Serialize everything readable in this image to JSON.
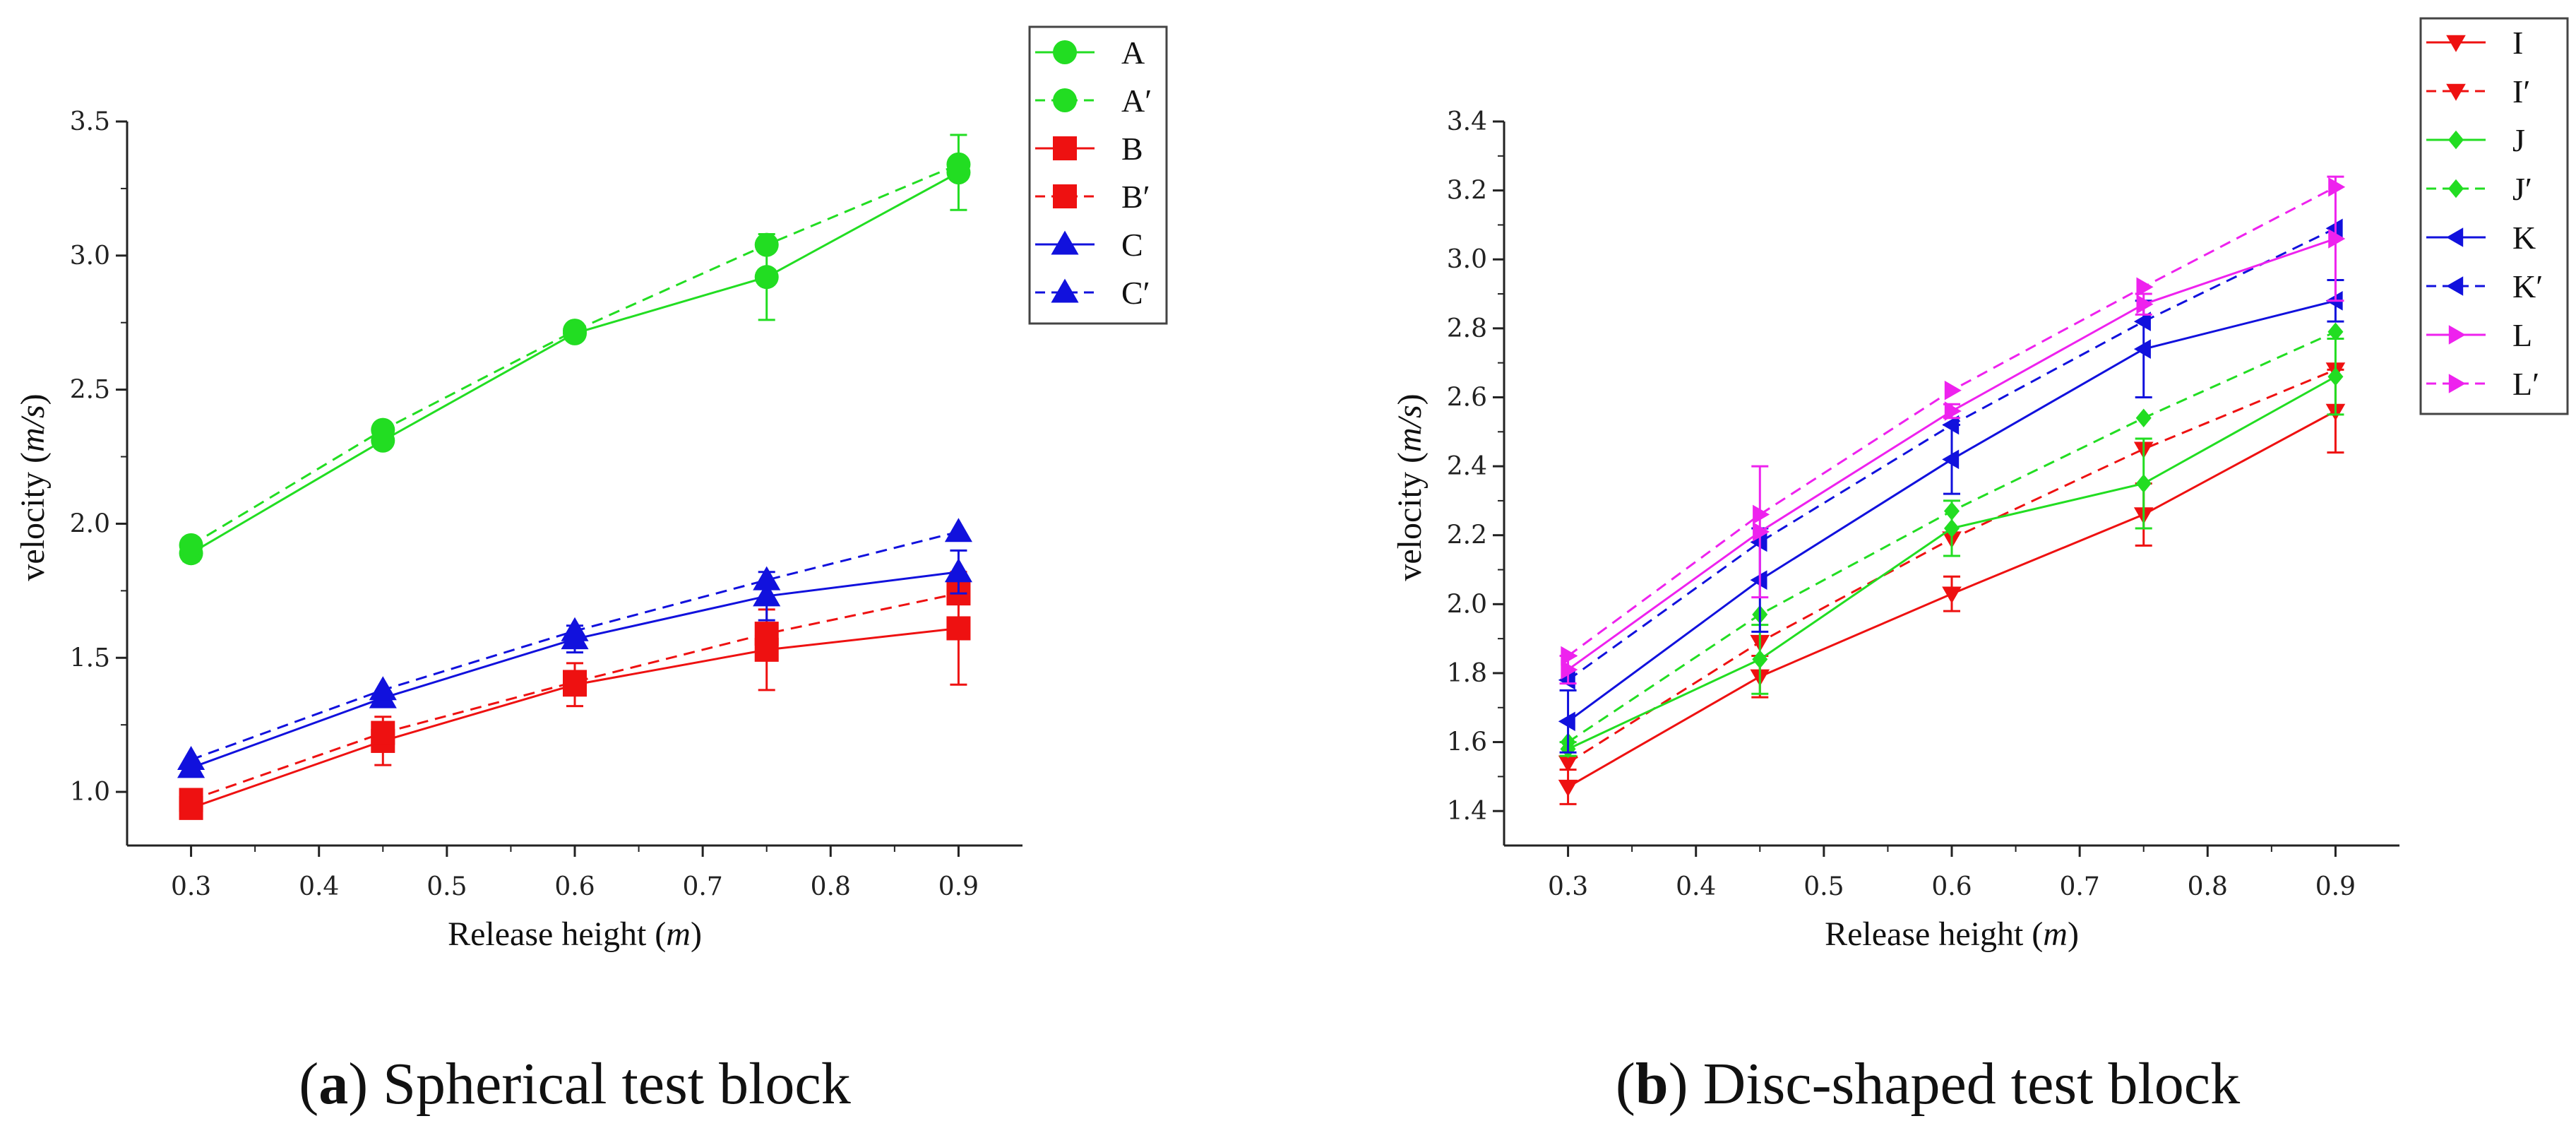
{
  "charts": [
    {
      "title": "Spherical test block",
      "caption_letter": "a",
      "xlabel": "Release height",
      "xunit": "m",
      "ylabel": "velocity",
      "yunit": "m/s",
      "x_ticks": [
        "0.3",
        "0.4",
        "0.5",
        "0.6",
        "0.7",
        "0.8",
        "0.9"
      ],
      "y_ticks": [
        "1.0",
        "1.5",
        "2.0",
        "2.5",
        "3.0",
        "3.5"
      ],
      "legend": [
        "A",
        "A′",
        "B",
        "B′",
        "C",
        "C′"
      ]
    },
    {
      "title": "Disc-shaped test block",
      "caption_letter": "b",
      "xlabel": "Release height",
      "xunit": "m",
      "ylabel": "velocity",
      "yunit": "m/s",
      "x_ticks": [
        "0.3",
        "0.4",
        "0.5",
        "0.6",
        "0.7",
        "0.8",
        "0.9"
      ],
      "y_ticks": [
        "1.4",
        "1.6",
        "1.8",
        "2.0",
        "2.2",
        "2.4",
        "2.6",
        "2.8",
        "3.0",
        "3.2",
        "3.4"
      ],
      "legend": [
        "I",
        "I′",
        "J",
        "J′",
        "K",
        "K′",
        "L",
        "L′"
      ]
    }
  ],
  "chart_data": [
    {
      "type": "line",
      "title": "Spherical test block",
      "xlabel": "Release height (m)",
      "ylabel": "velocity (m/s)",
      "x": [
        0.3,
        0.45,
        0.6,
        0.75,
        0.9
      ],
      "xlim": [
        0.25,
        0.95
      ],
      "ylim": [
        0.8,
        3.5
      ],
      "legend_position": "top-right outside",
      "series": [
        {
          "name": "A",
          "color": "#22dd22",
          "dash": false,
          "marker": "circle",
          "values": [
            1.89,
            2.31,
            2.71,
            2.92,
            3.31
          ],
          "errors": [
            0.03,
            0.02,
            0.02,
            0.16,
            0.14
          ]
        },
        {
          "name": "A′",
          "color": "#22dd22",
          "dash": true,
          "marker": "circle",
          "values": [
            1.92,
            2.35,
            2.72,
            3.04,
            3.34
          ],
          "errors": [
            0,
            0,
            0,
            0,
            0
          ]
        },
        {
          "name": "B",
          "color": "#ee1111",
          "dash": false,
          "marker": "square",
          "values": [
            0.94,
            1.19,
            1.4,
            1.53,
            1.61
          ],
          "errors": [
            0.02,
            0.09,
            0.08,
            0.15,
            0.21
          ]
        },
        {
          "name": "B′",
          "color": "#ee1111",
          "dash": true,
          "marker": "square",
          "values": [
            0.97,
            1.22,
            1.41,
            1.59,
            1.74
          ],
          "errors": [
            0,
            0,
            0,
            0,
            0
          ]
        },
        {
          "name": "C",
          "color": "#1111dd",
          "dash": false,
          "marker": "triangle-up",
          "values": [
            1.09,
            1.35,
            1.57,
            1.73,
            1.82
          ],
          "errors": [
            0.01,
            0.02,
            0.05,
            0.09,
            0.08
          ]
        },
        {
          "name": "C′",
          "color": "#1111dd",
          "dash": true,
          "marker": "triangle-up",
          "values": [
            1.12,
            1.38,
            1.6,
            1.79,
            1.97
          ],
          "errors": [
            0,
            0,
            0,
            0,
            0
          ]
        }
      ]
    },
    {
      "type": "line",
      "title": "Disc-shaped test block",
      "xlabel": "Release height (m)",
      "ylabel": "velocity (m/s)",
      "x": [
        0.3,
        0.45,
        0.6,
        0.75,
        0.9
      ],
      "xlim": [
        0.25,
        0.95
      ],
      "ylim": [
        1.3,
        3.4
      ],
      "legend_position": "top-right outside",
      "series": [
        {
          "name": "I",
          "color": "#ee1111",
          "dash": false,
          "marker": "triangle-down",
          "values": [
            1.47,
            1.79,
            2.03,
            2.26,
            2.56
          ],
          "errors": [
            0.05,
            0.06,
            0.05,
            0.09,
            0.12
          ]
        },
        {
          "name": "I′",
          "color": "#ee1111",
          "dash": true,
          "marker": "triangle-down",
          "values": [
            1.54,
            1.89,
            2.19,
            2.45,
            2.68
          ],
          "errors": [
            0,
            0,
            0,
            0,
            0
          ]
        },
        {
          "name": "J",
          "color": "#22dd22",
          "dash": false,
          "marker": "diamond",
          "values": [
            1.58,
            1.84,
            2.22,
            2.35,
            2.66
          ],
          "errors": [
            0.02,
            0.1,
            0.08,
            0.13,
            0.11
          ]
        },
        {
          "name": "J′",
          "color": "#22dd22",
          "dash": true,
          "marker": "diamond",
          "values": [
            1.6,
            1.97,
            2.27,
            2.54,
            2.79
          ],
          "errors": [
            0,
            0,
            0,
            0,
            0
          ]
        },
        {
          "name": "K",
          "color": "#1111dd",
          "dash": false,
          "marker": "triangle-left",
          "values": [
            1.66,
            2.07,
            2.42,
            2.74,
            2.88
          ],
          "errors": [
            0.09,
            0.15,
            0.1,
            0.14,
            0.06
          ]
        },
        {
          "name": "K′",
          "color": "#1111dd",
          "dash": true,
          "marker": "triangle-left",
          "values": [
            1.78,
            2.18,
            2.52,
            2.82,
            3.09
          ],
          "errors": [
            0,
            0,
            0,
            0,
            0
          ]
        },
        {
          "name": "L",
          "color": "#ee22ee",
          "dash": false,
          "marker": "triangle-right",
          "values": [
            1.81,
            2.21,
            2.56,
            2.87,
            3.06
          ],
          "errors": [
            0.04,
            0.19,
            0.02,
            0.03,
            0.18
          ]
        },
        {
          "name": "L′",
          "color": "#ee22ee",
          "dash": true,
          "marker": "triangle-right",
          "values": [
            1.85,
            2.26,
            2.62,
            2.92,
            3.21
          ],
          "errors": [
            0,
            0,
            0,
            0,
            0
          ]
        }
      ]
    }
  ]
}
